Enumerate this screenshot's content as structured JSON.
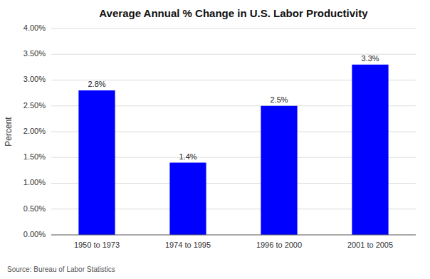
{
  "chart_data": {
    "type": "bar",
    "title": "Average Annual % Change in U.S. Labor Productivity",
    "y_label": "Percent",
    "annotations": [
      "Source: Bureau of Labor Statistics"
    ],
    "categories": [
      "1950 to 1973",
      "1974 to 1995",
      "1996 to 2000",
      "2001 to 2005"
    ],
    "values": [
      2.8,
      1.4,
      2.5,
      3.3
    ],
    "value_labels": [
      "2.8%",
      "1.4%",
      "2.5%",
      "3.3%"
    ],
    "data_labels": true,
    "color": "#0000ff",
    "ylim": [
      0,
      4.0
    ],
    "yticks": [
      {
        "value": 0.0,
        "label": "0.00%"
      },
      {
        "value": 0.5,
        "label": "0.50%"
      },
      {
        "value": 1.0,
        "label": "1.00%"
      },
      {
        "value": 1.5,
        "label": "1.50%"
      },
      {
        "value": 2.0,
        "label": "2.00%"
      },
      {
        "value": 2.5,
        "label": "2.50%"
      },
      {
        "value": 3.0,
        "label": "3.00%"
      },
      {
        "value": 3.5,
        "label": "3.50%"
      },
      {
        "value": 4.0,
        "label": "4.00%"
      }
    ],
    "grid": true
  }
}
